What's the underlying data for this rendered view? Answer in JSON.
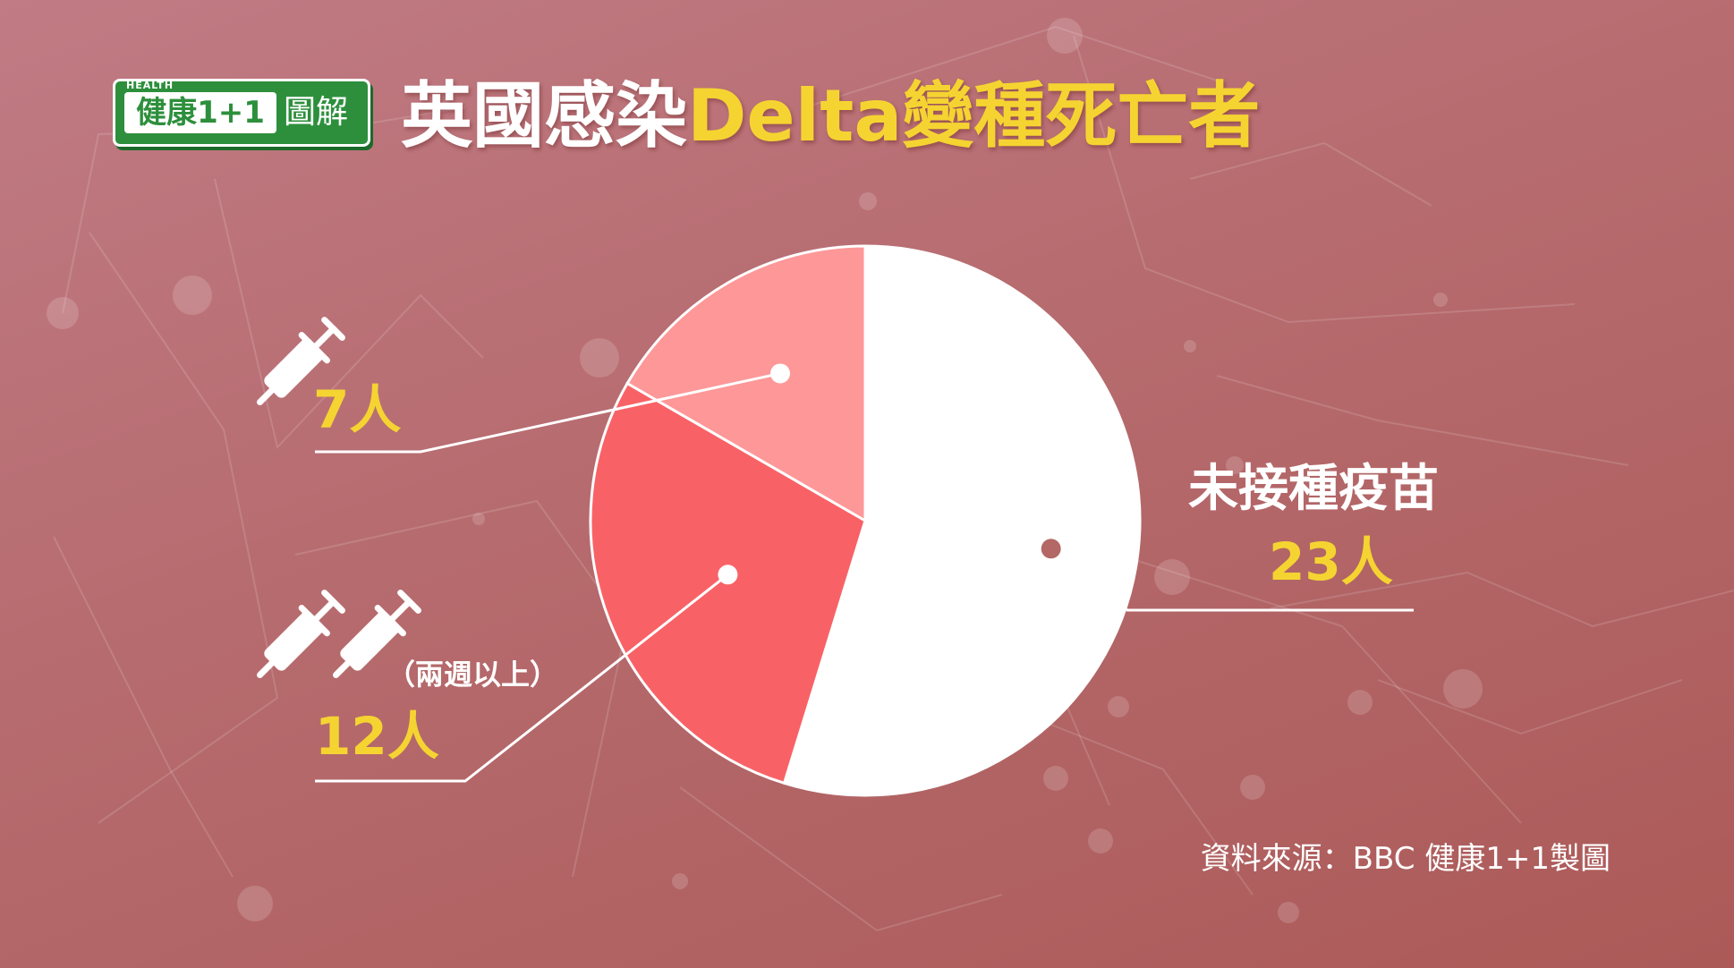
{
  "logo": {
    "tag": "HEALTH",
    "brand": "健康1+1",
    "sub": "圖解"
  },
  "title": {
    "part1": "英國感染",
    "part2": "Delta變種死亡者"
  },
  "colors": {
    "unvaccinated": "#ffffff",
    "one_dose": "#fd9798",
    "two_doses": "#f86266",
    "accent": "#f5d431",
    "background": "#b66b6e"
  },
  "chart_data": {
    "type": "pie",
    "slices": [
      {
        "label": "未接種疫苗",
        "value_text": "23人",
        "value": 23,
        "color": "#ffffff",
        "icon": "none"
      },
      {
        "label": "",
        "value_text": "12人",
        "value": 12,
        "color": "#f86266",
        "icon": "two-syringe-icons",
        "note": "（兩週以上）"
      },
      {
        "label": "",
        "value_text": "7人",
        "value": 7,
        "color": "#fd9798",
        "icon": "syringe-icon"
      }
    ]
  },
  "source": "資料來源：BBC  健康1+1製圖"
}
